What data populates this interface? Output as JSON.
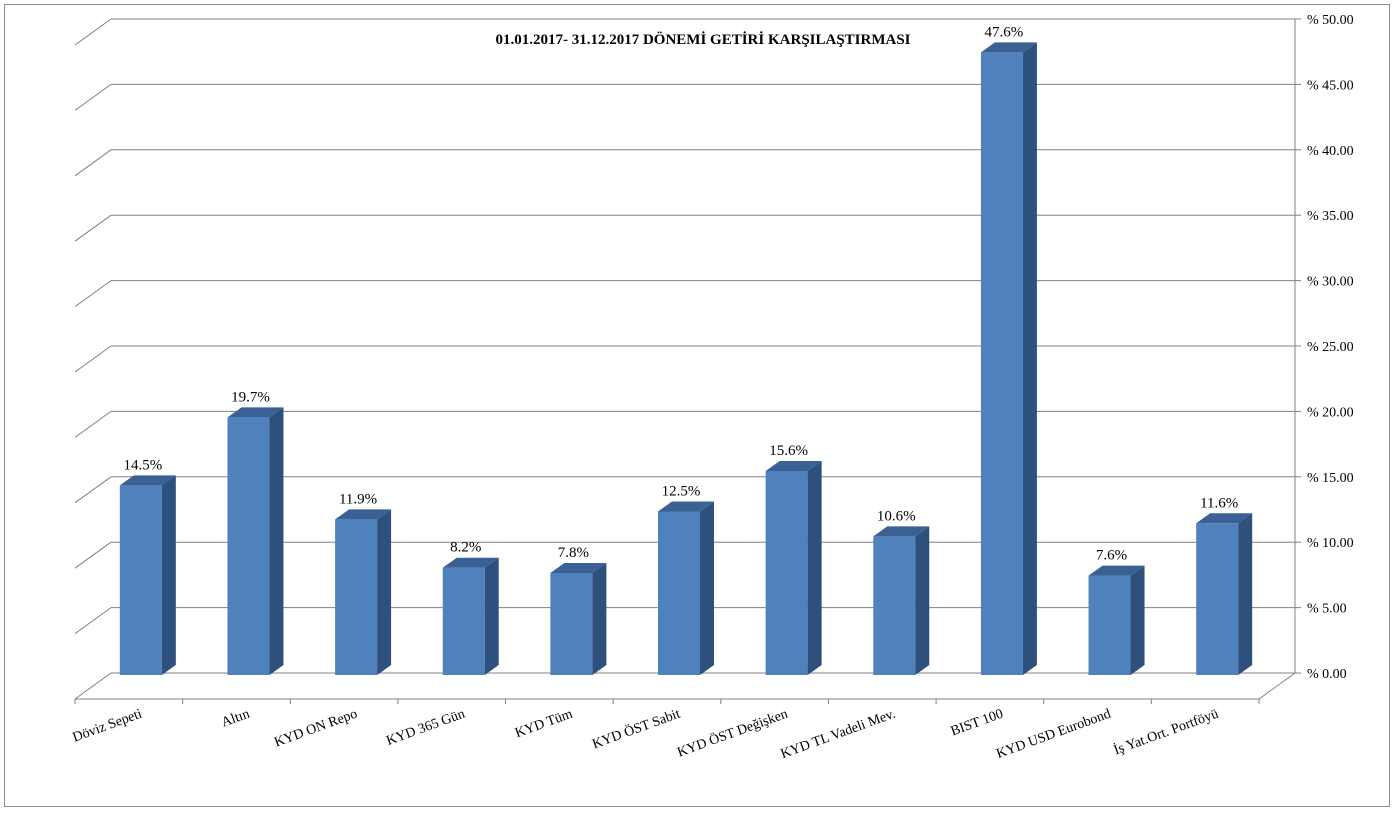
{
  "chart_data": {
    "type": "bar",
    "title": "01.01.2017- 31.12.2017  DÖNEMİ GETİRİ  KARŞILAŞTIRMASI",
    "categories": [
      "Döviz Sepeti",
      "Altın",
      "KYD ON Repo",
      "KYD 365 Gün",
      "KYD Tüm",
      "KYD ÖST Sabit",
      "KYD ÖST Değişken",
      "KYD TL Vadeli Mev.",
      "BIST 100",
      "KYD USD Eurobond",
      "İş Yat.Ort. Portföyü"
    ],
    "values": [
      14.5,
      19.7,
      11.9,
      8.2,
      7.8,
      12.5,
      15.6,
      10.6,
      47.6,
      7.6,
      11.6
    ],
    "data_labels": [
      "14.5%",
      "19.7%",
      "11.9%",
      "8.2%",
      "7.8%",
      "12.5%",
      "15.6%",
      "10.6%",
      "47.6%",
      "7.6%",
      "11.6%"
    ],
    "ylim": [
      0,
      50
    ],
    "yticks": [
      0,
      5,
      10,
      15,
      20,
      25,
      30,
      35,
      40,
      45,
      50
    ],
    "ytick_labels": [
      "% 0.00",
      "% 5.00",
      "% 10.00",
      "% 15.00",
      "% 20.00",
      "% 25.00",
      "% 30.00",
      "% 35.00",
      "% 40.00",
      "% 45.00",
      "% 50.00"
    ],
    "y_axis_side": "right",
    "grid": true,
    "legend": "none",
    "colors": {
      "bar_front": "#4f81bd",
      "bar_side": "#2e507c",
      "bar_top": "#3a6094",
      "grid": "#808080"
    }
  }
}
